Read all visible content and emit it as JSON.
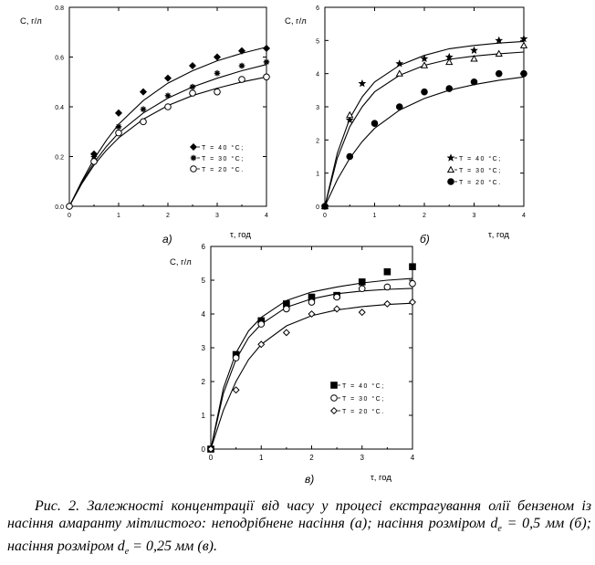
{
  "figure": {
    "caption_parts": [
      "Рис. 2. Залежності концентрації від часу у процесі екстрагування олії бензеном із насіння амаранту мітлистого: неподрібнене насіння (а); насіння розміром d",
      "е",
      " = 0,5 мм (б); насіння розміром d",
      "е",
      " = 0,25 мм (в)."
    ]
  },
  "chart_data": [
    {
      "type": "scatter",
      "panel_label": "а)",
      "ylabel": "С, г/л",
      "xlabel": "τ, год",
      "xlim": [
        0,
        4
      ],
      "ylim": [
        0,
        0.8
      ],
      "xticks": [
        0,
        1,
        2,
        3,
        4
      ],
      "xtick_labels": [
        "0",
        "1",
        "2",
        "3",
        "4"
      ],
      "yticks": [
        0,
        0.2,
        0.4,
        0.6,
        0.8
      ],
      "ytick_labels": [
        "0.0",
        "0.2",
        "0.4",
        "0.6",
        "0.8"
      ],
      "legend_position": "bottom-right",
      "series": [
        {
          "name": "T = 40 °С;",
          "marker": "diamond-filled",
          "points": [
            [
              0,
              0
            ],
            [
              0.5,
              0.21
            ],
            [
              1,
              0.375
            ],
            [
              1.5,
              0.46
            ],
            [
              2,
              0.515
            ],
            [
              2.5,
              0.565
            ],
            [
              3,
              0.6
            ],
            [
              3.5,
              0.625
            ],
            [
              4,
              0.635
            ]
          ],
          "fit": [
            [
              0,
              0
            ],
            [
              0.25,
              0.1
            ],
            [
              0.5,
              0.19
            ],
            [
              0.75,
              0.265
            ],
            [
              1,
              0.33
            ],
            [
              1.5,
              0.425
            ],
            [
              2,
              0.495
            ],
            [
              2.5,
              0.545
            ],
            [
              3,
              0.585
            ],
            [
              3.5,
              0.615
            ],
            [
              4,
              0.64
            ]
          ]
        },
        {
          "name": "T = 30 °С;",
          "marker": "asterisk",
          "points": [
            [
              0,
              0
            ],
            [
              0.5,
              0.2
            ],
            [
              1,
              0.32
            ],
            [
              1.5,
              0.39
            ],
            [
              2,
              0.445
            ],
            [
              2.5,
              0.48
            ],
            [
              3,
              0.535
            ],
            [
              3.5,
              0.565
            ],
            [
              4,
              0.58
            ]
          ],
          "fit": [
            [
              0,
              0
            ],
            [
              0.25,
              0.095
            ],
            [
              0.5,
              0.175
            ],
            [
              0.75,
              0.24
            ],
            [
              1,
              0.295
            ],
            [
              1.5,
              0.375
            ],
            [
              2,
              0.435
            ],
            [
              2.5,
              0.48
            ],
            [
              3,
              0.515
            ],
            [
              3.5,
              0.545
            ],
            [
              4,
              0.57
            ]
          ]
        },
        {
          "name": "T = 20 °С.",
          "marker": "circle-open",
          "points": [
            [
              0,
              0
            ],
            [
              0.5,
              0.18
            ],
            [
              1,
              0.295
            ],
            [
              1.5,
              0.34
            ],
            [
              2,
              0.4
            ],
            [
              2.5,
              0.455
            ],
            [
              3,
              0.46
            ],
            [
              3.5,
              0.51
            ],
            [
              4,
              0.52
            ]
          ],
          "fit": [
            [
              0,
              0
            ],
            [
              0.25,
              0.09
            ],
            [
              0.5,
              0.165
            ],
            [
              0.75,
              0.225
            ],
            [
              1,
              0.275
            ],
            [
              1.5,
              0.35
            ],
            [
              2,
              0.405
            ],
            [
              2.5,
              0.445
            ],
            [
              3,
              0.475
            ],
            [
              3.5,
              0.5
            ],
            [
              4,
              0.52
            ]
          ]
        }
      ]
    },
    {
      "type": "scatter",
      "panel_label": "б)",
      "ylabel": "С, г/л",
      "xlabel": "τ, год",
      "xlim": [
        0,
        4
      ],
      "ylim": [
        0,
        6
      ],
      "xticks": [
        0,
        1,
        2,
        3,
        4
      ],
      "xtick_labels": [
        "0",
        "1",
        "2",
        "3",
        "4"
      ],
      "yticks": [
        0,
        1,
        2,
        3,
        4,
        5,
        6
      ],
      "ytick_labels": [
        "0",
        "1",
        "2",
        "3",
        "4",
        "5",
        "6"
      ],
      "legend_position": "bottom-right",
      "series": [
        {
          "name": "T = 40 °С;",
          "marker": "star-filled",
          "points": [
            [
              0,
              0
            ],
            [
              0.5,
              2.6
            ],
            [
              0.75,
              3.7
            ],
            [
              1.5,
              4.3
            ],
            [
              2,
              4.45
            ],
            [
              2.5,
              4.5
            ],
            [
              3,
              4.7
            ],
            [
              3.5,
              5
            ],
            [
              4,
              5.05
            ]
          ],
          "fit": [
            [
              0,
              0
            ],
            [
              0.25,
              1.6
            ],
            [
              0.5,
              2.65
            ],
            [
              0.75,
              3.3
            ],
            [
              1,
              3.75
            ],
            [
              1.5,
              4.25
            ],
            [
              2,
              4.55
            ],
            [
              2.5,
              4.75
            ],
            [
              3,
              4.85
            ],
            [
              3.5,
              4.92
            ],
            [
              4,
              4.97
            ]
          ]
        },
        {
          "name": "T = 30 °С;",
          "marker": "triangle-open",
          "points": [
            [
              0,
              0
            ],
            [
              0.5,
              2.75
            ],
            [
              1.5,
              4.0
            ],
            [
              2,
              4.25
            ],
            [
              2.5,
              4.35
            ],
            [
              3,
              4.45
            ],
            [
              3.5,
              4.6
            ],
            [
              4,
              4.85
            ]
          ],
          "fit": [
            [
              0,
              0
            ],
            [
              0.25,
              1.45
            ],
            [
              0.5,
              2.4
            ],
            [
              0.75,
              3.0
            ],
            [
              1,
              3.45
            ],
            [
              1.5,
              3.95
            ],
            [
              2,
              4.25
            ],
            [
              2.5,
              4.43
            ],
            [
              3,
              4.53
            ],
            [
              3.5,
              4.6
            ],
            [
              4,
              4.65
            ]
          ]
        },
        {
          "name": "T = 20 °С.",
          "marker": "circle-filled",
          "points": [
            [
              0,
              0
            ],
            [
              0.5,
              1.5
            ],
            [
              1,
              2.5
            ],
            [
              1.5,
              3.0
            ],
            [
              2,
              3.45
            ],
            [
              2.5,
              3.55
            ],
            [
              3,
              3.75
            ],
            [
              3.5,
              4
            ],
            [
              4,
              4
            ]
          ],
          "fit": [
            [
              0,
              0
            ],
            [
              0.25,
              0.8
            ],
            [
              0.5,
              1.45
            ],
            [
              0.75,
              1.95
            ],
            [
              1,
              2.35
            ],
            [
              1.5,
              2.9
            ],
            [
              2,
              3.25
            ],
            [
              2.5,
              3.5
            ],
            [
              3,
              3.67
            ],
            [
              3.5,
              3.8
            ],
            [
              4,
              3.9
            ]
          ]
        }
      ]
    },
    {
      "type": "scatter",
      "panel_label": "в)",
      "ylabel": "С, г/л",
      "xlabel": "τ, год",
      "xlim": [
        0,
        4
      ],
      "ylim": [
        0,
        6
      ],
      "xticks": [
        0,
        1,
        2,
        3,
        4
      ],
      "xtick_labels": [
        "0",
        "1",
        "2",
        "3",
        "4"
      ],
      "yticks": [
        0,
        1,
        2,
        3,
        4,
        5,
        6
      ],
      "ytick_labels": [
        "0",
        "1",
        "2",
        "3",
        "4",
        "5",
        "6"
      ],
      "legend_position": "bottom-right",
      "series": [
        {
          "name": "T = 40 °С;",
          "marker": "square-filled",
          "points": [
            [
              0,
              0
            ],
            [
              0.5,
              2.8
            ],
            [
              1,
              3.8
            ],
            [
              1.5,
              4.3
            ],
            [
              2,
              4.5
            ],
            [
              2.5,
              4.55
            ],
            [
              3,
              4.95
            ],
            [
              3.5,
              5.25
            ],
            [
              4,
              5.4
            ]
          ],
          "fit": [
            [
              0,
              0
            ],
            [
              0.25,
              1.8
            ],
            [
              0.5,
              2.85
            ],
            [
              0.75,
              3.5
            ],
            [
              1,
              3.9
            ],
            [
              1.5,
              4.4
            ],
            [
              2,
              4.65
            ],
            [
              2.5,
              4.8
            ],
            [
              3,
              4.92
            ],
            [
              3.5,
              5.0
            ],
            [
              4,
              5.05
            ]
          ]
        },
        {
          "name": "T = 30 °С;",
          "marker": "circle-open",
          "points": [
            [
              0,
              0
            ],
            [
              0.5,
              2.7
            ],
            [
              1,
              3.7
            ],
            [
              1.5,
              4.15
            ],
            [
              2,
              4.35
            ],
            [
              2.5,
              4.5
            ],
            [
              3,
              4.75
            ],
            [
              3.5,
              4.8
            ],
            [
              4,
              4.9
            ]
          ],
          "fit": [
            [
              0,
              0
            ],
            [
              0.25,
              1.65
            ],
            [
              0.5,
              2.65
            ],
            [
              0.75,
              3.3
            ],
            [
              1,
              3.7
            ],
            [
              1.5,
              4.2
            ],
            [
              2,
              4.45
            ],
            [
              2.5,
              4.6
            ],
            [
              3,
              4.68
            ],
            [
              3.5,
              4.73
            ],
            [
              4,
              4.76
            ]
          ]
        },
        {
          "name": "T = 20 °С.",
          "marker": "diamond-open",
          "points": [
            [
              0,
              0
            ],
            [
              0.5,
              1.75
            ],
            [
              1,
              3.1
            ],
            [
              1.5,
              3.45
            ],
            [
              2,
              4.0
            ],
            [
              2.5,
              4.15
            ],
            [
              3,
              4.05
            ],
            [
              3.5,
              4.3
            ],
            [
              4,
              4.35
            ]
          ],
          "fit": [
            [
              0,
              0
            ],
            [
              0.25,
              1.15
            ],
            [
              0.5,
              2.0
            ],
            [
              0.75,
              2.65
            ],
            [
              1,
              3.1
            ],
            [
              1.5,
              3.65
            ],
            [
              2,
              3.95
            ],
            [
              2.5,
              4.12
            ],
            [
              3,
              4.22
            ],
            [
              3.5,
              4.28
            ],
            [
              4,
              4.32
            ]
          ]
        }
      ]
    }
  ]
}
